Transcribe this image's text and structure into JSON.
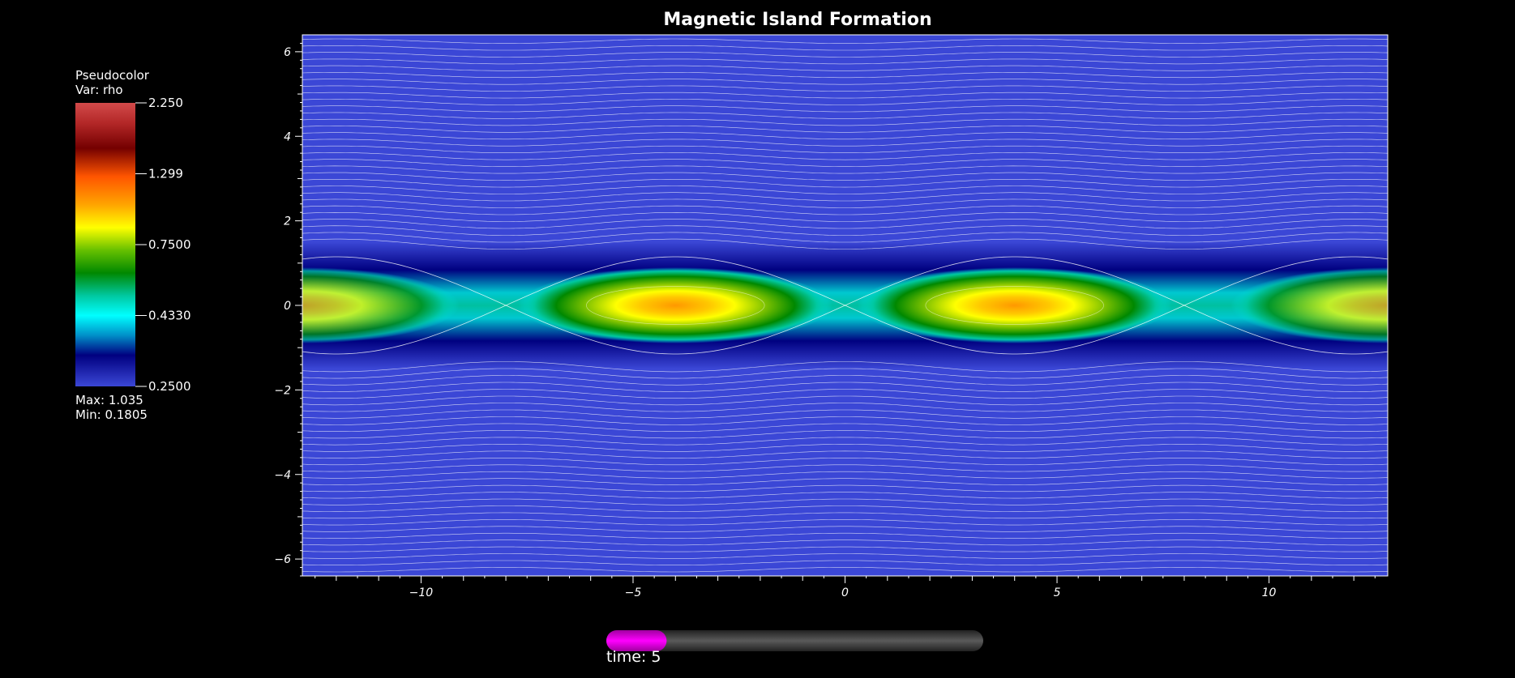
{
  "window": {
    "title": "Magnetic Island Formation"
  },
  "legend": {
    "plot_type": "Pseudocolor",
    "var_label": "Var: rho",
    "ticks": [
      "2.250",
      "1.299",
      "0.7500",
      "0.4330",
      "0.2500"
    ],
    "max_label": "Max:  1.035",
    "min_label": "Min:  0.1805"
  },
  "time": {
    "label": "time: 5",
    "progress_fraction": 0.16,
    "bar_color": "#ff00ff"
  },
  "colors": {
    "background": "#000000",
    "field_low": "#3b47d6",
    "field_lines": "#ffffff"
  },
  "chart_data": {
    "type": "heatmap",
    "title": "Magnetic Island Formation",
    "variable": "rho",
    "colorbar_scale": "log",
    "colorbar_range": [
      0.25,
      2.25
    ],
    "data_range": [
      0.1805,
      1.035
    ],
    "xlim": [
      -12.8,
      12.8
    ],
    "ylim": [
      -6.4,
      6.4
    ],
    "x_ticks": [
      "-10",
      "-5",
      "0",
      "5",
      "10"
    ],
    "y_ticks": [
      "6",
      "4",
      "2",
      "0",
      "-2",
      "-4",
      "-6"
    ],
    "islands": [
      {
        "x_center": -4,
        "y_center": 0
      },
      {
        "x_center": 4,
        "y_center": 0
      }
    ],
    "x_points": [
      -12.8,
      0,
      12.8
    ],
    "grid": false,
    "legend_position": "left"
  }
}
